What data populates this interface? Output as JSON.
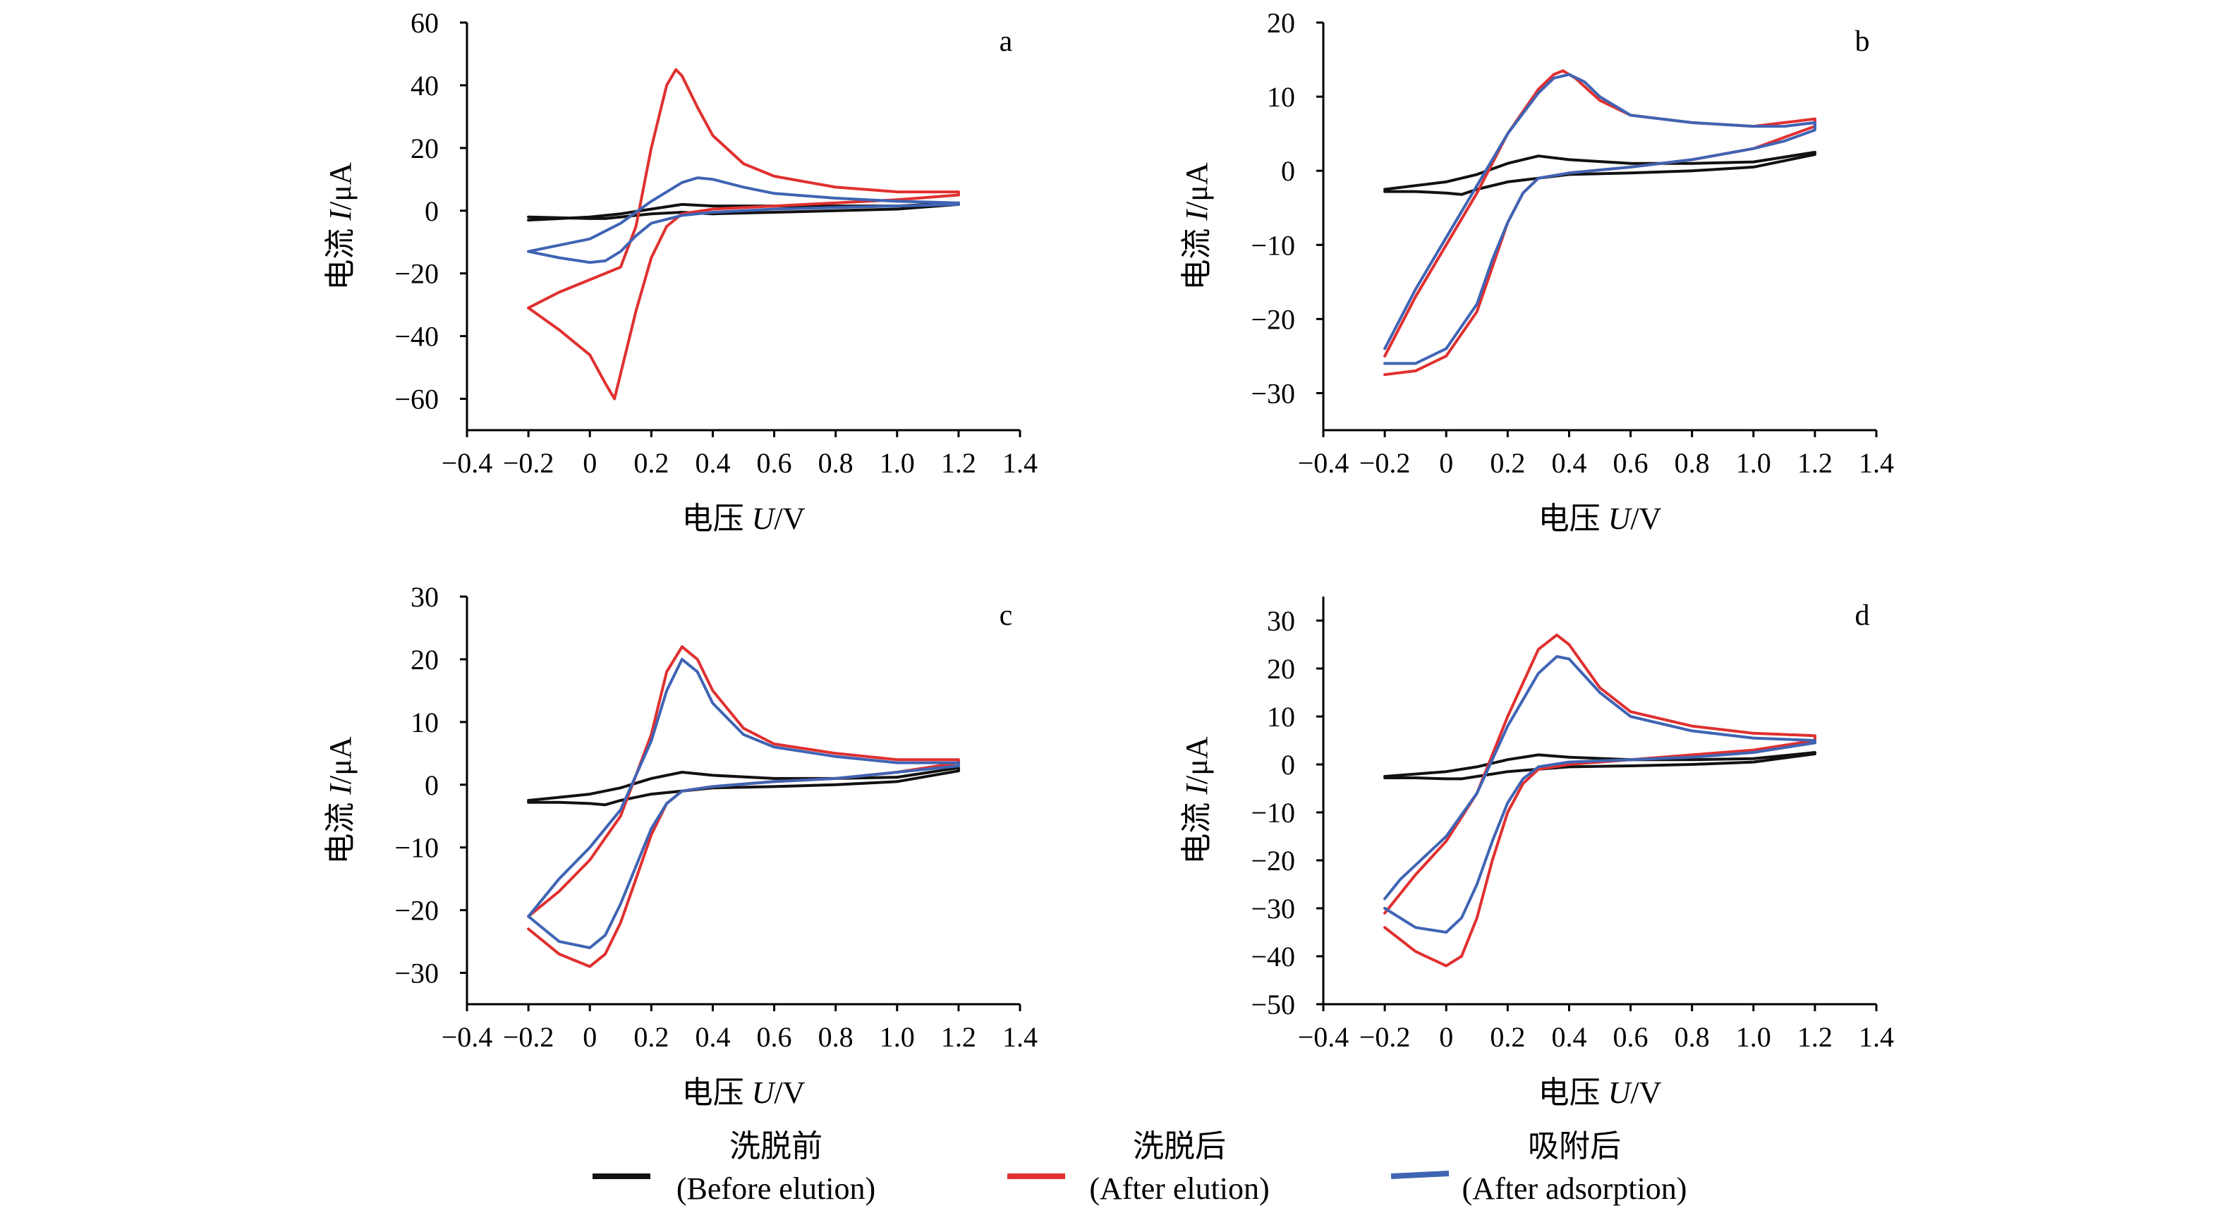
{
  "chart_data": [
    {
      "type": "line",
      "panel_label": "a",
      "xlabel": {
        "cn": "电压 ",
        "var": "U",
        "unit": "/V"
      },
      "ylabel": {
        "cn": "电流 ",
        "var": "I",
        "unit": "/μA"
      },
      "xlim": [
        -0.4,
        1.4
      ],
      "ylim": [
        -70,
        60
      ],
      "xticks": [
        -0.4,
        -0.2,
        0,
        0.2,
        0.4,
        0.6,
        0.8,
        1.0,
        1.2,
        1.4
      ],
      "xtick_labels": [
        "−0.4",
        "−0.2",
        "0",
        "0.2",
        "0.4",
        "0.6",
        "0.8",
        "1.0",
        "1.2",
        "1.4"
      ],
      "yticks": [
        -60,
        -40,
        -20,
        0,
        20,
        40,
        60
      ],
      "ytick_labels": [
        "−60",
        "−40",
        "−20",
        "0",
        "20",
        "40",
        "60"
      ],
      "series": [
        {
          "name": "Before elution",
          "color": "#111111",
          "x": [
            -0.2,
            0.0,
            0.1,
            0.2,
            0.3,
            0.4,
            0.6,
            0.8,
            1.0,
            1.2,
            1.2,
            1.0,
            0.8,
            0.6,
            0.4,
            0.3,
            0.2,
            0.1,
            0.05,
            0.0,
            -0.2
          ],
          "y": [
            -3,
            -2,
            -1,
            0.5,
            2,
            1.5,
            1.5,
            1.5,
            1.5,
            2.5,
            2,
            0.5,
            0,
            -0.5,
            -1,
            -0.5,
            -1,
            -2,
            -2.5,
            -2.5,
            -2
          ]
        },
        {
          "name": "After elution",
          "color": "#e03030",
          "x": [
            -0.2,
            -0.1,
            0.0,
            0.1,
            0.15,
            0.2,
            0.25,
            0.28,
            0.3,
            0.35,
            0.4,
            0.5,
            0.6,
            0.8,
            1.0,
            1.2,
            1.2,
            1.0,
            0.8,
            0.6,
            0.4,
            0.3,
            0.25,
            0.2,
            0.15,
            0.1,
            0.08,
            0.05,
            0.0,
            -0.1,
            -0.2
          ],
          "y": [
            -31,
            -26,
            -22,
            -18,
            -5,
            20,
            40,
            45,
            43,
            33,
            24,
            15,
            11,
            7.5,
            6,
            6,
            5,
            3.5,
            2.5,
            1.5,
            0.5,
            -1,
            -5,
            -15,
            -32,
            -52,
            -60,
            -55,
            -46,
            -38,
            -31
          ]
        },
        {
          "name": "After adsorption",
          "color": "#3f64b4",
          "x": [
            -0.2,
            -0.1,
            0.0,
            0.1,
            0.2,
            0.3,
            0.35,
            0.4,
            0.5,
            0.6,
            0.8,
            1.0,
            1.2,
            1.2,
            1.0,
            0.8,
            0.6,
            0.4,
            0.3,
            0.2,
            0.15,
            0.1,
            0.05,
            0.0,
            -0.1,
            -0.2
          ],
          "y": [
            -13,
            -11,
            -9,
            -4,
            3,
            9,
            10.5,
            10,
            7.5,
            5.5,
            4,
            3,
            2.5,
            2,
            1.5,
            1,
            0.5,
            -0.5,
            -1.5,
            -4,
            -8,
            -13,
            -16,
            -16.5,
            -15,
            -13
          ]
        }
      ]
    },
    {
      "type": "line",
      "panel_label": "b",
      "xlabel": {
        "cn": "电压 ",
        "var": "U",
        "unit": "/V"
      },
      "ylabel": {
        "cn": "电流 ",
        "var": "I",
        "unit": "/μA"
      },
      "xlim": [
        -0.4,
        1.4
      ],
      "ylim": [
        -35,
        20
      ],
      "xticks": [
        -0.4,
        -0.2,
        0,
        0.2,
        0.4,
        0.6,
        0.8,
        1.0,
        1.2,
        1.4
      ],
      "xtick_labels": [
        "−0.4",
        "−0.2",
        "0",
        "0.2",
        "0.4",
        "0.6",
        "0.8",
        "1.0",
        "1.2",
        "1.4"
      ],
      "yticks": [
        -30,
        -20,
        -10,
        0,
        10,
        20
      ],
      "ytick_labels": [
        "−30",
        "−20",
        "−10",
        "0",
        "10",
        "20"
      ],
      "series": [
        {
          "name": "Before elution",
          "color": "#111111",
          "x": [
            -0.2,
            -0.1,
            0.0,
            0.1,
            0.2,
            0.3,
            0.4,
            0.6,
            0.8,
            1.0,
            1.2,
            1.2,
            1.0,
            0.8,
            0.6,
            0.4,
            0.3,
            0.2,
            0.1,
            0.05,
            0.0,
            -0.1,
            -0.2
          ],
          "y": [
            -2.5,
            -2,
            -1.5,
            -0.5,
            1,
            2,
            1.5,
            1,
            1,
            1.2,
            2.5,
            2.2,
            0.5,
            0,
            -0.3,
            -0.5,
            -1,
            -1.5,
            -2.5,
            -3.2,
            -3,
            -2.8,
            -2.8
          ]
        },
        {
          "name": "After elution",
          "color": "#e03030",
          "x": [
            -0.2,
            -0.15,
            -0.1,
            0.0,
            0.1,
            0.2,
            0.3,
            0.35,
            0.38,
            0.42,
            0.5,
            0.6,
            0.8,
            1.0,
            1.1,
            1.2,
            1.2,
            1.1,
            1.0,
            0.8,
            0.6,
            0.4,
            0.3,
            0.25,
            0.2,
            0.15,
            0.1,
            0.0,
            -0.1,
            -0.2
          ],
          "y": [
            -25,
            -21,
            -17,
            -10,
            -3,
            5,
            11,
            13,
            13.5,
            12.5,
            9.5,
            7.5,
            6.5,
            6,
            6.5,
            7,
            6,
            4.5,
            3,
            1.5,
            0.5,
            -0.3,
            -1,
            -3,
            -7,
            -13,
            -19,
            -25,
            -27,
            -27.5
          ]
        },
        {
          "name": "After adsorption",
          "color": "#3f64b4",
          "x": [
            -0.2,
            -0.15,
            -0.1,
            0.0,
            0.1,
            0.2,
            0.3,
            0.35,
            0.4,
            0.45,
            0.5,
            0.6,
            0.8,
            1.0,
            1.1,
            1.2,
            1.2,
            1.1,
            1.0,
            0.8,
            0.6,
            0.4,
            0.3,
            0.25,
            0.2,
            0.15,
            0.1,
            0.0,
            -0.1,
            -0.2
          ],
          "y": [
            -24,
            -20,
            -16,
            -9,
            -2,
            5,
            10.5,
            12.5,
            13,
            12,
            10,
            7.5,
            6.5,
            6,
            6,
            6.5,
            5.5,
            4,
            3,
            1.5,
            0.5,
            -0.3,
            -1,
            -3,
            -7,
            -12,
            -18,
            -24,
            -26,
            -26
          ]
        }
      ]
    },
    {
      "type": "line",
      "panel_label": "c",
      "xlabel": {
        "cn": "电压 ",
        "var": "U",
        "unit": "/V"
      },
      "ylabel": {
        "cn": "电流 ",
        "var": "I",
        "unit": "/μA"
      },
      "xlim": [
        -0.4,
        1.4
      ],
      "ylim": [
        -35,
        30
      ],
      "xticks": [
        -0.4,
        -0.2,
        0,
        0.2,
        0.4,
        0.6,
        0.8,
        1.0,
        1.2,
        1.4
      ],
      "xtick_labels": [
        "−0.4",
        "−0.2",
        "0",
        "0.2",
        "0.4",
        "0.6",
        "0.8",
        "1.0",
        "1.2",
        "1.4"
      ],
      "yticks": [
        -30,
        -20,
        -10,
        0,
        10,
        20,
        30
      ],
      "ytick_labels": [
        "−30",
        "−20",
        "−10",
        "0",
        "10",
        "20",
        "30"
      ],
      "series": [
        {
          "name": "Before elution",
          "color": "#111111",
          "x": [
            -0.2,
            -0.1,
            0.0,
            0.1,
            0.2,
            0.3,
            0.4,
            0.6,
            0.8,
            1.0,
            1.2,
            1.2,
            1.0,
            0.8,
            0.6,
            0.4,
            0.3,
            0.2,
            0.1,
            0.05,
            0.0,
            -0.1,
            -0.2
          ],
          "y": [
            -2.5,
            -2,
            -1.5,
            -0.5,
            1,
            2,
            1.5,
            1,
            1,
            1.2,
            2.7,
            2.2,
            0.5,
            0,
            -0.3,
            -0.5,
            -1,
            -1.5,
            -2.5,
            -3.2,
            -3,
            -2.8,
            -2.8
          ]
        },
        {
          "name": "After elution",
          "color": "#e03030",
          "x": [
            -0.2,
            -0.15,
            -0.1,
            0.0,
            0.1,
            0.2,
            0.25,
            0.3,
            0.35,
            0.4,
            0.5,
            0.6,
            0.8,
            1.0,
            1.2,
            1.2,
            1.0,
            0.8,
            0.6,
            0.4,
            0.3,
            0.25,
            0.2,
            0.15,
            0.1,
            0.05,
            0.0,
            -0.1,
            -0.2
          ],
          "y": [
            -21,
            -19,
            -17,
            -12,
            -5,
            8,
            18,
            22,
            20,
            15,
            9,
            6.5,
            5,
            4,
            4,
            3.5,
            2,
            1,
            0.5,
            -0.3,
            -1,
            -3,
            -8,
            -15,
            -22,
            -27,
            -29,
            -27,
            -23
          ]
        },
        {
          "name": "After adsorption",
          "color": "#3f64b4",
          "x": [
            -0.2,
            -0.15,
            -0.1,
            0.0,
            0.1,
            0.2,
            0.25,
            0.3,
            0.35,
            0.4,
            0.5,
            0.6,
            0.8,
            1.0,
            1.2,
            1.2,
            1.0,
            0.8,
            0.6,
            0.4,
            0.3,
            0.25,
            0.2,
            0.15,
            0.1,
            0.05,
            0.0,
            -0.1,
            -0.2
          ],
          "y": [
            -21,
            -18,
            -15,
            -10,
            -4,
            7,
            15,
            20,
            18,
            13,
            8,
            6,
            4.5,
            3.5,
            3.5,
            3,
            2,
            1,
            0.5,
            -0.3,
            -1,
            -3,
            -7,
            -13,
            -19,
            -24,
            -26,
            -25,
            -21
          ]
        }
      ]
    },
    {
      "type": "line",
      "panel_label": "d",
      "xlabel": {
        "cn": "电压 ",
        "var": "U",
        "unit": "/V"
      },
      "ylabel": {
        "cn": "电流 ",
        "var": "I",
        "unit": "/μA"
      },
      "xlim": [
        -0.4,
        1.4
      ],
      "ylim": [
        -50,
        35
      ],
      "xticks": [
        -0.4,
        -0.2,
        0,
        0.2,
        0.4,
        0.6,
        0.8,
        1.0,
        1.2,
        1.4
      ],
      "xtick_labels": [
        "−0.4",
        "−0.2",
        "0",
        "0.2",
        "0.4",
        "0.6",
        "0.8",
        "1.0",
        "1.2",
        "1.4"
      ],
      "yticks": [
        -50,
        -40,
        -30,
        -20,
        -10,
        0,
        10,
        20,
        30
      ],
      "ytick_labels": [
        "−50",
        "−40",
        "−30",
        "−20",
        "−10",
        "0",
        "10",
        "20",
        "30"
      ],
      "series": [
        {
          "name": "Before elution",
          "color": "#111111",
          "x": [
            -0.2,
            -0.1,
            0.0,
            0.1,
            0.2,
            0.3,
            0.4,
            0.6,
            0.8,
            1.0,
            1.2,
            1.2,
            1.0,
            0.8,
            0.6,
            0.4,
            0.3,
            0.2,
            0.1,
            0.05,
            0.0,
            -0.1,
            -0.2
          ],
          "y": [
            -2.5,
            -2,
            -1.5,
            -0.5,
            1,
            2,
            1.5,
            1,
            1,
            1.2,
            2.5,
            2.2,
            0.5,
            0,
            -0.3,
            -0.5,
            -1,
            -1.5,
            -2.5,
            -3,
            -3,
            -2.8,
            -2.8
          ]
        },
        {
          "name": "After elution",
          "color": "#e03030",
          "x": [
            -0.2,
            -0.15,
            -0.1,
            0.0,
            0.1,
            0.2,
            0.3,
            0.36,
            0.4,
            0.5,
            0.6,
            0.8,
            1.0,
            1.2,
            1.2,
            1.0,
            0.8,
            0.6,
            0.4,
            0.3,
            0.25,
            0.2,
            0.15,
            0.1,
            0.05,
            0.0,
            -0.1,
            -0.2
          ],
          "y": [
            -31,
            -27,
            -23,
            -16,
            -6,
            10,
            24,
            27,
            25,
            16,
            11,
            8,
            6.5,
            6,
            5,
            3,
            2,
            1,
            0,
            -1,
            -4,
            -10,
            -20,
            -32,
            -40,
            -42,
            -39,
            -34
          ]
        },
        {
          "name": "After adsorption",
          "color": "#3f64b4",
          "x": [
            -0.2,
            -0.15,
            -0.1,
            0.0,
            0.1,
            0.2,
            0.3,
            0.36,
            0.4,
            0.5,
            0.6,
            0.8,
            1.0,
            1.2,
            1.2,
            1.0,
            0.8,
            0.6,
            0.4,
            0.3,
            0.25,
            0.2,
            0.15,
            0.1,
            0.05,
            0.0,
            -0.1,
            -0.2
          ],
          "y": [
            -28,
            -24,
            -21,
            -15,
            -6,
            8,
            19,
            22.5,
            22,
            15,
            10,
            7,
            5.5,
            5,
            4.5,
            2.5,
            1.5,
            1,
            0.5,
            -0.5,
            -3,
            -8,
            -16,
            -25,
            -32,
            -35,
            -34,
            -30
          ]
        }
      ]
    }
  ],
  "legend": {
    "items": [
      {
        "cn": "洗脱前",
        "en": "(Before elution)",
        "color": "#111111"
      },
      {
        "cn": "洗脱后",
        "en": "(After elution)",
        "color": "#e03030"
      },
      {
        "cn": "吸附后",
        "en": "(After adsorption)",
        "color": "#3f64b4"
      }
    ]
  }
}
